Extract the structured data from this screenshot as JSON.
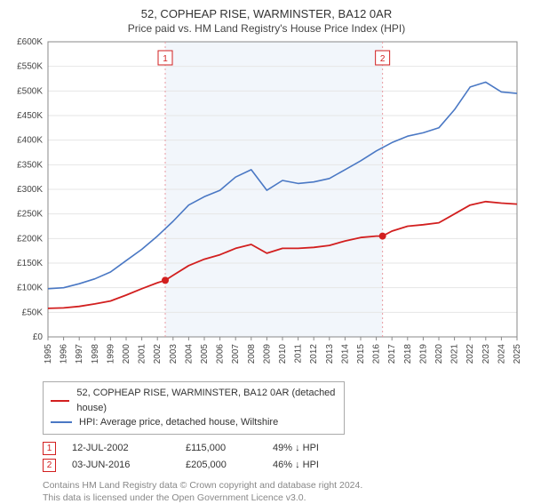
{
  "title": "52, COPHEAP RISE, WARMINSTER, BA12 0AR",
  "subtitle": "Price paid vs. HM Land Registry's House Price Index (HPI)",
  "chart": {
    "type": "line",
    "background_color": "#ffffff",
    "plot_bg_color": "#ffffff",
    "shaded_band_color": "#f2f6fb",
    "grid_color": "#e6e6e6",
    "axis_color": "#888888",
    "tick_font_size": 10,
    "ylabel_prefix": "£",
    "ylim": [
      0,
      600000
    ],
    "ytick_step": 50000,
    "yticks_labels": [
      "£0",
      "£50K",
      "£100K",
      "£150K",
      "£200K",
      "£250K",
      "£300K",
      "£350K",
      "£400K",
      "£450K",
      "£500K",
      "£550K",
      "£600K"
    ],
    "xlim": [
      1995,
      2025
    ],
    "xticks": [
      1995,
      1996,
      1997,
      1998,
      1999,
      2000,
      2001,
      2002,
      2003,
      2004,
      2005,
      2006,
      2007,
      2008,
      2009,
      2010,
      2011,
      2012,
      2013,
      2014,
      2015,
      2016,
      2017,
      2018,
      2019,
      2020,
      2021,
      2022,
      2023,
      2024,
      2025
    ],
    "shaded_band_xrange": [
      2002.5,
      2016.4
    ],
    "series": [
      {
        "name": "price_paid",
        "label": "52, COPHEAP RISE, WARMINSTER, BA12 0AR (detached house)",
        "color": "#d21f1f",
        "line_width": 1.8,
        "data": [
          [
            1995.0,
            58000
          ],
          [
            1996.0,
            59000
          ],
          [
            1997.0,
            62000
          ],
          [
            1998.0,
            67000
          ],
          [
            1999.0,
            73000
          ],
          [
            2000.0,
            85000
          ],
          [
            2001.0,
            98000
          ],
          [
            2002.0,
            110000
          ],
          [
            2002.5,
            115000
          ],
          [
            2003.0,
            125000
          ],
          [
            2004.0,
            145000
          ],
          [
            2005.0,
            158000
          ],
          [
            2006.0,
            167000
          ],
          [
            2007.0,
            180000
          ],
          [
            2008.0,
            188000
          ],
          [
            2009.0,
            170000
          ],
          [
            2010.0,
            180000
          ],
          [
            2011.0,
            180000
          ],
          [
            2012.0,
            182000
          ],
          [
            2013.0,
            186000
          ],
          [
            2014.0,
            195000
          ],
          [
            2015.0,
            202000
          ],
          [
            2016.0,
            205000
          ],
          [
            2016.4,
            205000
          ],
          [
            2017.0,
            215000
          ],
          [
            2018.0,
            225000
          ],
          [
            2019.0,
            228000
          ],
          [
            2020.0,
            232000
          ],
          [
            2021.0,
            250000
          ],
          [
            2022.0,
            268000
          ],
          [
            2023.0,
            275000
          ],
          [
            2024.0,
            272000
          ],
          [
            2025.0,
            270000
          ]
        ]
      },
      {
        "name": "hpi",
        "label": "HPI: Average price, detached house, Wiltshire",
        "color": "#4a78c4",
        "line_width": 1.6,
        "data": [
          [
            1995.0,
            98000
          ],
          [
            1996.0,
            100000
          ],
          [
            1997.0,
            108000
          ],
          [
            1998.0,
            118000
          ],
          [
            1999.0,
            132000
          ],
          [
            2000.0,
            155000
          ],
          [
            2001.0,
            178000
          ],
          [
            2002.0,
            205000
          ],
          [
            2003.0,
            235000
          ],
          [
            2004.0,
            268000
          ],
          [
            2005.0,
            285000
          ],
          [
            2006.0,
            298000
          ],
          [
            2007.0,
            325000
          ],
          [
            2008.0,
            340000
          ],
          [
            2009.0,
            298000
          ],
          [
            2010.0,
            318000
          ],
          [
            2011.0,
            312000
          ],
          [
            2012.0,
            315000
          ],
          [
            2013.0,
            322000
          ],
          [
            2014.0,
            340000
          ],
          [
            2015.0,
            358000
          ],
          [
            2016.0,
            378000
          ],
          [
            2017.0,
            395000
          ],
          [
            2018.0,
            408000
          ],
          [
            2019.0,
            415000
          ],
          [
            2020.0,
            425000
          ],
          [
            2021.0,
            462000
          ],
          [
            2022.0,
            508000
          ],
          [
            2023.0,
            518000
          ],
          [
            2024.0,
            498000
          ],
          [
            2025.0,
            495000
          ]
        ]
      }
    ],
    "sales_markers": [
      {
        "n": "1",
        "x": 2002.5,
        "y": 115000,
        "color": "#d21f1f",
        "badge_y_offset": -45
      },
      {
        "n": "2",
        "x": 2016.4,
        "y": 205000,
        "color": "#d21f1f",
        "badge_y_offset": -45
      }
    ],
    "marker_line_color": "#e89aa0",
    "marker_line_dash": "2,3"
  },
  "legend": {
    "items": [
      {
        "color": "#d21f1f",
        "label": "52, COPHEAP RISE, WARMINSTER, BA12 0AR (detached house)"
      },
      {
        "color": "#4a78c4",
        "label": "HPI: Average price, detached house, Wiltshire"
      }
    ]
  },
  "sales_table": {
    "rows": [
      {
        "n": "1",
        "color": "#d21f1f",
        "date": "12-JUL-2002",
        "price": "£115,000",
        "hpi": "49% ↓ HPI"
      },
      {
        "n": "2",
        "color": "#d21f1f",
        "date": "03-JUN-2016",
        "price": "£205,000",
        "hpi": "46% ↓ HPI"
      }
    ]
  },
  "footnote": {
    "line1": "Contains HM Land Registry data © Crown copyright and database right 2024.",
    "line2": "This data is licensed under the Open Government Licence v3.0."
  }
}
